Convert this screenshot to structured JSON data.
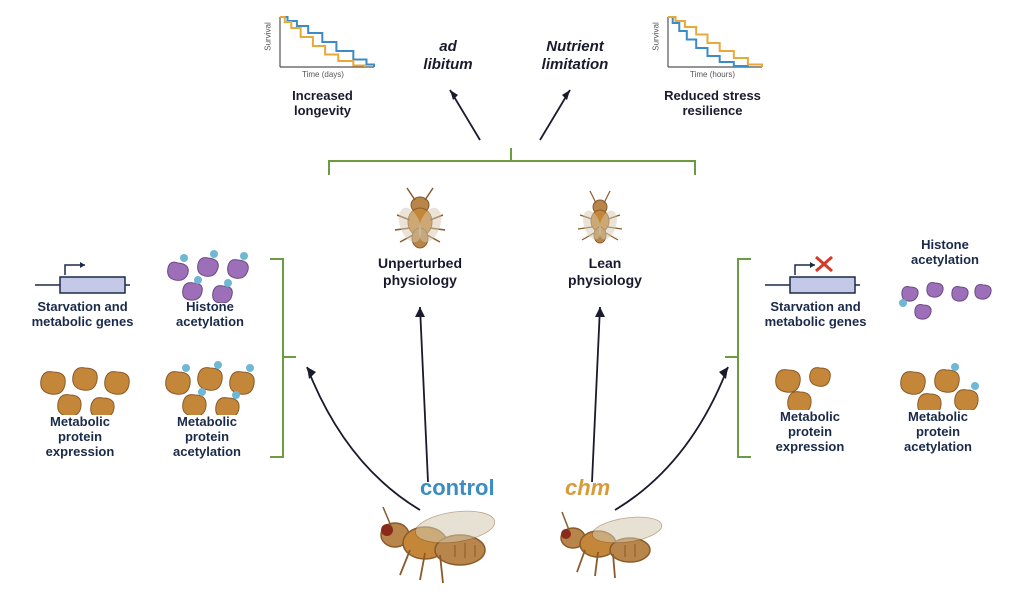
{
  "colors": {
    "text_dark": "#1a1a2e",
    "text_navy": "#1a2a4a",
    "control_blue": "#3b8cc4",
    "chm_orange": "#d89b3a",
    "survival_blue": "#3b8cc4",
    "survival_yellow": "#e8a93a",
    "bracket_green": "#6b9c3f",
    "fly_brown": "#b8864a",
    "fly_dark": "#8a5a2a",
    "histone_purple": "#9c6fb8",
    "protein_brown": "#c4873a",
    "gene_box": "#c5c9e8",
    "red_x": "#d63a2a"
  },
  "charts": {
    "left": {
      "x_label": "Time (days)",
      "y_label": "Survival",
      "blue_points": [
        [
          0,
          100
        ],
        [
          8,
          100
        ],
        [
          8,
          92
        ],
        [
          18,
          92
        ],
        [
          18,
          82
        ],
        [
          30,
          82
        ],
        [
          30,
          68
        ],
        [
          45,
          68
        ],
        [
          45,
          50
        ],
        [
          60,
          50
        ],
        [
          60,
          32
        ],
        [
          78,
          32
        ],
        [
          78,
          15
        ],
        [
          92,
          15
        ],
        [
          92,
          5
        ],
        [
          100,
          5
        ],
        [
          100,
          0
        ]
      ],
      "yellow_points": [
        [
          0,
          100
        ],
        [
          5,
          100
        ],
        [
          5,
          90
        ],
        [
          12,
          90
        ],
        [
          12,
          78
        ],
        [
          22,
          78
        ],
        [
          22,
          60
        ],
        [
          35,
          60
        ],
        [
          35,
          42
        ],
        [
          48,
          42
        ],
        [
          48,
          25
        ],
        [
          62,
          25
        ],
        [
          62,
          12
        ],
        [
          78,
          12
        ],
        [
          78,
          3
        ],
        [
          90,
          3
        ],
        [
          90,
          0
        ]
      ]
    },
    "right": {
      "x_label": "Time (hours)",
      "y_label": "Survival",
      "blue_points": [
        [
          0,
          100
        ],
        [
          5,
          100
        ],
        [
          5,
          88
        ],
        [
          12,
          88
        ],
        [
          12,
          72
        ],
        [
          20,
          72
        ],
        [
          20,
          55
        ],
        [
          30,
          55
        ],
        [
          30,
          38
        ],
        [
          42,
          38
        ],
        [
          42,
          22
        ],
        [
          55,
          22
        ],
        [
          55,
          10
        ],
        [
          70,
          10
        ],
        [
          70,
          2
        ],
        [
          85,
          2
        ],
        [
          85,
          0
        ]
      ],
      "yellow_points": [
        [
          0,
          100
        ],
        [
          8,
          100
        ],
        [
          8,
          92
        ],
        [
          18,
          92
        ],
        [
          18,
          80
        ],
        [
          30,
          80
        ],
        [
          30,
          65
        ],
        [
          42,
          65
        ],
        [
          42,
          48
        ],
        [
          55,
          48
        ],
        [
          55,
          32
        ],
        [
          70,
          32
        ],
        [
          70,
          18
        ],
        [
          85,
          18
        ],
        [
          85,
          5
        ],
        [
          100,
          5
        ],
        [
          100,
          0
        ]
      ]
    }
  },
  "top": {
    "ad_libitum": "ad\nlibitum",
    "nutrient_limitation": "Nutrient\nlimitation",
    "increased_longevity": "Increased\nlongevity",
    "reduced_stress": "Reduced stress\nresilience"
  },
  "middle": {
    "unperturbed": "Unperturbed\nphysiology",
    "lean": "Lean\nphysiology"
  },
  "bottom": {
    "control": "control",
    "chm": "chm"
  },
  "left_panel": {
    "starvation_genes": "Starvation and\nmetabolic genes",
    "histone_acetylation": "Histone\nacetylation",
    "protein_expression": "Metabolic\nprotein\nexpression",
    "protein_acetylation": "Metabolic\nprotein\nacetylation"
  },
  "right_panel": {
    "starvation_genes": "Starvation and\nmetabolic genes",
    "histone_acetylation": "Histone\nacetylation",
    "protein_expression": "Metabolic\nprotein\nexpression",
    "protein_acetylation": "Metabolic\nprotein\nacetylation"
  }
}
